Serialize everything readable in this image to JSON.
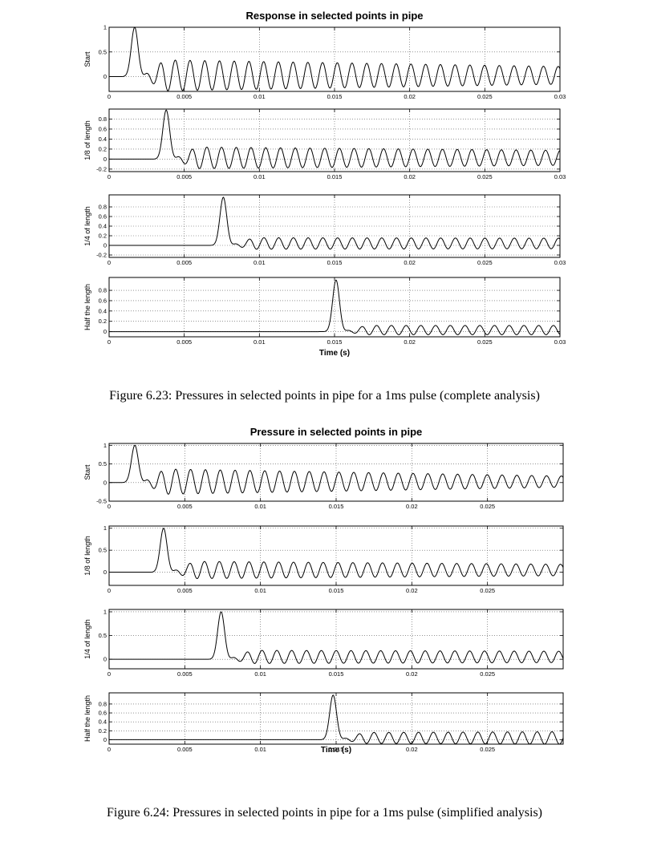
{
  "figures": [
    {
      "caption": "Figure 6.23: Pressures in selected points in pipe for a 1ms pulse (complete analysis)"
    },
    {
      "caption": "Figure 6.24: Pressures in selected points in pipe for a 1ms pulse (simplified analysis)"
    }
  ],
  "chart_data": [
    {
      "type": "line",
      "title": "Response in selected points in pipe",
      "xlabel": "Time (s)",
      "grid": true,
      "xlim": [
        0,
        0.03
      ],
      "xticks": [
        "0",
        "0.005",
        "0.01",
        "0.015",
        "0.02",
        "0.025",
        "0.03"
      ],
      "subplots": [
        {
          "ylabel": "Start",
          "ylim": [
            -0.3,
            1.0
          ],
          "yticks": [
            "0",
            "0.5",
            "1"
          ],
          "series": [
            {
              "color": "#000000",
              "pulse_peak_time": 0.0017,
              "pulse_peak": 1.0,
              "post_amplitude": 0.32,
              "post_amplitude_end": 0.18,
              "post_offset": 0.05,
              "oscillation_period": 0.00098
            }
          ]
        },
        {
          "ylabel": "1/8 of length",
          "ylim": [
            -0.25,
            1.0
          ],
          "yticks": [
            "-0.2",
            "0",
            "0.2",
            "0.4",
            "0.6",
            "0.8"
          ],
          "series": [
            {
              "color": "#000000",
              "pulse_peak_time": 0.0038,
              "pulse_peak": 0.98,
              "post_amplitude": 0.22,
              "post_amplitude_end": 0.15,
              "post_offset": 0.05,
              "oscillation_period": 0.00098
            }
          ]
        },
        {
          "ylabel": "1/4 of length",
          "ylim": [
            -0.25,
            1.05
          ],
          "yticks": [
            "-0.2",
            "0",
            "0.2",
            "0.4",
            "0.6",
            "0.8"
          ],
          "series": [
            {
              "color": "#000000",
              "pulse_peak_time": 0.0076,
              "pulse_peak": 1.0,
              "post_amplitude": 0.12,
              "post_amplitude_end": 0.11,
              "post_offset": 0.08,
              "oscillation_period": 0.00098
            }
          ]
        },
        {
          "ylabel": "Half the length",
          "ylim": [
            -0.1,
            1.05
          ],
          "yticks": [
            "0",
            "0.2",
            "0.4",
            "0.6",
            "0.8"
          ],
          "series": [
            {
              "color": "#000000",
              "pulse_peak_time": 0.0151,
              "pulse_peak": 1.0,
              "post_amplitude": 0.09,
              "post_amplitude_end": 0.09,
              "post_offset": 0.06,
              "oscillation_period": 0.00098
            }
          ]
        }
      ]
    },
    {
      "type": "line",
      "title": "Pressure in selected points in pipe",
      "xlabel": "Time (s)",
      "grid": true,
      "xlim": [
        0,
        0.03
      ],
      "xticks": [
        "0",
        "0.005",
        "0.01",
        "0.015",
        "0.02",
        "0.025"
      ],
      "subplots": [
        {
          "ylabel": "Start",
          "ylim": [
            -0.5,
            1.05
          ],
          "yticks": [
            "-0.5",
            "0",
            "0.5",
            "1"
          ],
          "series": [
            {
              "color": "#000000",
              "pulse_peak_time": 0.0017,
              "pulse_peak": 1.0,
              "post_amplitude": 0.35,
              "post_amplitude_end": 0.15,
              "post_offset": 0.05,
              "oscillation_period": 0.00098
            }
          ]
        },
        {
          "ylabel": "1/8 of length",
          "ylim": [
            -0.3,
            1.05
          ],
          "yticks": [
            "0",
            "0.5",
            "1"
          ],
          "series": [
            {
              "color": "#000000",
              "pulse_peak_time": 0.0036,
              "pulse_peak": 1.0,
              "post_amplitude": 0.2,
              "post_amplitude_end": 0.13,
              "post_offset": 0.1,
              "oscillation_period": 0.00098
            }
          ]
        },
        {
          "ylabel": "1/4 of length",
          "ylim": [
            -0.2,
            1.05
          ],
          "yticks": [
            "0",
            "0.5",
            "1"
          ],
          "series": [
            {
              "color": "#000000",
              "pulse_peak_time": 0.0074,
              "pulse_peak": 1.0,
              "post_amplitude": 0.14,
              "post_amplitude_end": 0.12,
              "post_offset": 0.1,
              "oscillation_period": 0.00098
            }
          ]
        },
        {
          "ylabel": "Half the length",
          "ylim": [
            -0.1,
            1.05
          ],
          "yticks": [
            "0",
            "0.2",
            "0.4",
            "0.6",
            "0.8"
          ],
          "series": [
            {
              "color": "#000000",
              "pulse_peak_time": 0.0148,
              "pulse_peak": 1.0,
              "post_amplitude": 0.12,
              "post_amplitude_end": 0.14,
              "post_offset": 0.08,
              "oscillation_period": 0.00098
            }
          ]
        }
      ]
    }
  ]
}
